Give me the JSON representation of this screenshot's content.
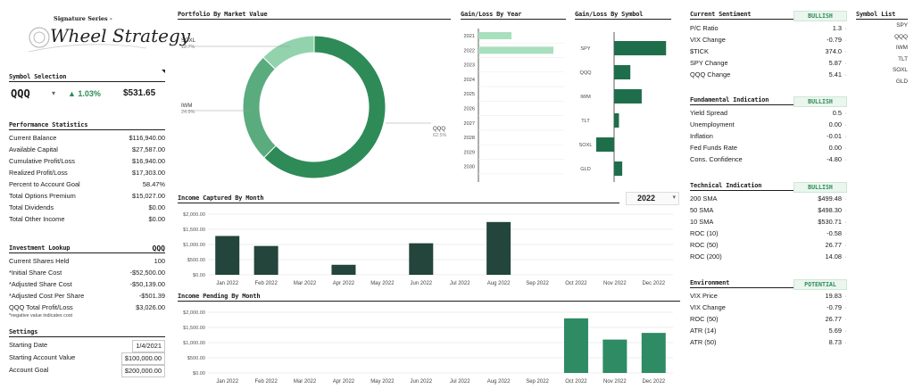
{
  "logo": {
    "series": "Signature Series -",
    "name": "Wheel Strategy"
  },
  "symbol_selection": {
    "title": "Symbol Selection",
    "symbol": "QQQ",
    "change_pct": "▲ 1.03%",
    "price": "$531.65"
  },
  "performance": {
    "title": "Performance Statistics",
    "rows": [
      {
        "label": "Current Balance",
        "value": "$116,940.00"
      },
      {
        "label": "Available Capital",
        "value": "$27,587.00"
      },
      {
        "label": "Cumulative Profit/Loss",
        "value": "$16,940.00"
      },
      {
        "label": "Realized Profit/Loss",
        "value": "$17,303.00"
      },
      {
        "label": "Percent to Account Goal",
        "value": "58.47%"
      },
      {
        "label": "Total Options Premium",
        "value": "$15,027.00"
      },
      {
        "label": "Total Dividends",
        "value": "$0.00"
      },
      {
        "label": "Total Other Income",
        "value": "$0.00"
      }
    ]
  },
  "lookup": {
    "title": "Investment Lookup",
    "symbol": "QQQ",
    "rows": [
      {
        "label": "Current Shares Held",
        "value": "100"
      },
      {
        "label": "*Initial Share Cost",
        "value": "-$52,500.00"
      },
      {
        "label": "*Adjusted Share Cost",
        "value": "-$50,139.00"
      },
      {
        "label": "*Adjusted Cost Per Share",
        "value": "-$501.39"
      },
      {
        "label": "QQQ Total Profit/Loss",
        "value": "$3,026.00"
      }
    ],
    "note": "*negative value indicates cost"
  },
  "settings": {
    "title": "Settings",
    "rows": [
      {
        "label": "Starting Date",
        "value": "1/4/2021"
      },
      {
        "label": "Starting Account Value",
        "value": "$100,000.00"
      },
      {
        "label": "Account Goal",
        "value": "$200,000.00"
      }
    ]
  },
  "portfolio": {
    "title": "Portfolio By Market Value",
    "slices": [
      {
        "name": "QQQ",
        "pct": "62.5%",
        "value": 62.5,
        "color": "#2e8b57"
      },
      {
        "name": "IWM",
        "pct": "24.9%",
        "value": 24.9,
        "color": "#5aac7f"
      },
      {
        "name": "SOXL",
        "pct": "12.7%",
        "value": 12.7,
        "color": "#92d3ad"
      }
    ]
  },
  "gain_year": {
    "title": "Gain/Loss By Year",
    "years": [
      "2021",
      "2022",
      "2023",
      "2024",
      "2025",
      "2026",
      "2027",
      "2028",
      "2029",
      "2030"
    ],
    "values": [
      4.5,
      10.2,
      0,
      0,
      0,
      0,
      0,
      0,
      0,
      0
    ],
    "color": "#a8dfbd"
  },
  "gain_symbol": {
    "title": "Gain/Loss By Symbol",
    "symbols": [
      "SPY",
      "QQQ",
      "IWM",
      "TLT",
      "SOXL",
      "GLD"
    ],
    "values": [
      6.4,
      2.0,
      3.4,
      0.6,
      -2.2,
      1.0
    ],
    "color": "#1f6e4b"
  },
  "sentiment": {
    "title": "Current Sentiment",
    "badge": "BULLISH",
    "rows": [
      {
        "label": "P/C Ratio",
        "value": "1.3"
      },
      {
        "label": "VIX Change",
        "value": "-0.79"
      },
      {
        "label": "$TICK",
        "value": "374.0"
      },
      {
        "label": "SPY Change",
        "value": "5.87"
      },
      {
        "label": "QQQ Change",
        "value": "5.41"
      }
    ]
  },
  "fundamental": {
    "title": "Fundamental Indication",
    "badge": "BULLISH",
    "rows": [
      {
        "label": "Yield Spread",
        "value": "0.5"
      },
      {
        "label": "Unemployment",
        "value": "0.00"
      },
      {
        "label": "Inflation",
        "value": "-0.01"
      },
      {
        "label": "Fed Funds Rate",
        "value": "0.00"
      },
      {
        "label": "Cons. Confidence",
        "value": "-4.80"
      }
    ]
  },
  "technical": {
    "title": "Technical Indication",
    "badge": "BULLISH",
    "rows": [
      {
        "label": "200 SMA",
        "value": "$499.48"
      },
      {
        "label": "50 SMA",
        "value": "$498.30"
      },
      {
        "label": "10 SMA",
        "value": "$530.71"
      },
      {
        "label": "ROC (10)",
        "value": "-0.58"
      },
      {
        "label": "ROC (50)",
        "value": "26.77"
      },
      {
        "label": "ROC (200)",
        "value": "14.08"
      }
    ]
  },
  "environment": {
    "title": "Environment",
    "badge": "POTENTIAL",
    "rows": [
      {
        "label": "VIX Price",
        "value": "19.83"
      },
      {
        "label": "VIX Change",
        "value": "-0.79"
      },
      {
        "label": "ROC (50)",
        "value": "26.77"
      },
      {
        "label": "ATR (14)",
        "value": "5.69"
      },
      {
        "label": "ATR (50)",
        "value": "8.73"
      }
    ]
  },
  "symbol_list": {
    "title": "Symbol List",
    "items": [
      "SPY",
      "QQQ",
      "IWM",
      "TLT",
      "SOXL",
      "GLD"
    ]
  },
  "income_captured": {
    "title": "Income Captured By Month",
    "year": "2022"
  },
  "income_pending": {
    "title": "Income Pending By Month"
  },
  "chart_data": [
    {
      "type": "pie",
      "title": "Portfolio By Market Value",
      "categories": [
        "QQQ",
        "IWM",
        "SOXL"
      ],
      "values": [
        62.5,
        24.9,
        12.7
      ]
    },
    {
      "type": "bar",
      "title": "Gain/Loss By Year",
      "categories": [
        "2021",
        "2022",
        "2023",
        "2024",
        "2025",
        "2026",
        "2027",
        "2028",
        "2029",
        "2030"
      ],
      "values": [
        4.5,
        10.2,
        0,
        0,
        0,
        0,
        0,
        0,
        0,
        0
      ]
    },
    {
      "type": "bar",
      "title": "Gain/Loss By Symbol",
      "categories": [
        "SPY",
        "QQQ",
        "IWM",
        "TLT",
        "SOXL",
        "GLD"
      ],
      "values": [
        6.4,
        2.0,
        3.4,
        0.6,
        -2.2,
        1.0
      ]
    },
    {
      "type": "bar",
      "title": "Income Captured By Month",
      "categories": [
        "Jan 2022",
        "Feb 2022",
        "Mar 2022",
        "Apr 2022",
        "May 2022",
        "Jun 2022",
        "Jul 2022",
        "Aug 2022",
        "Sep 2022",
        "Oct 2022",
        "Nov 2022",
        "Dec 2022"
      ],
      "values": [
        1280,
        950,
        0,
        330,
        0,
        1040,
        0,
        1740,
        0,
        0,
        0,
        0
      ],
      "yticks": [
        "$0.00",
        "$500.00",
        "$1,000.00",
        "$1,500.00",
        "$2,000.00"
      ],
      "ylim": [
        0,
        2000
      ],
      "color": "#23453b"
    },
    {
      "type": "bar",
      "title": "Income Pending By Month",
      "categories": [
        "Jan 2022",
        "Feb 2022",
        "Mar 2022",
        "Apr 2022",
        "May 2022",
        "Jun 2022",
        "Jul 2022",
        "Aug 2022",
        "Sep 2022",
        "Oct 2022",
        "Nov 2022",
        "Dec 2022"
      ],
      "values": [
        0,
        0,
        0,
        0,
        0,
        0,
        0,
        0,
        0,
        1800,
        1100,
        1320
      ],
      "yticks": [
        "$0.00",
        "$500.00",
        "$1,000.00",
        "$1,500.00",
        "$2,000.00"
      ],
      "ylim": [
        0,
        2000
      ],
      "color": "#2e8b63"
    }
  ]
}
